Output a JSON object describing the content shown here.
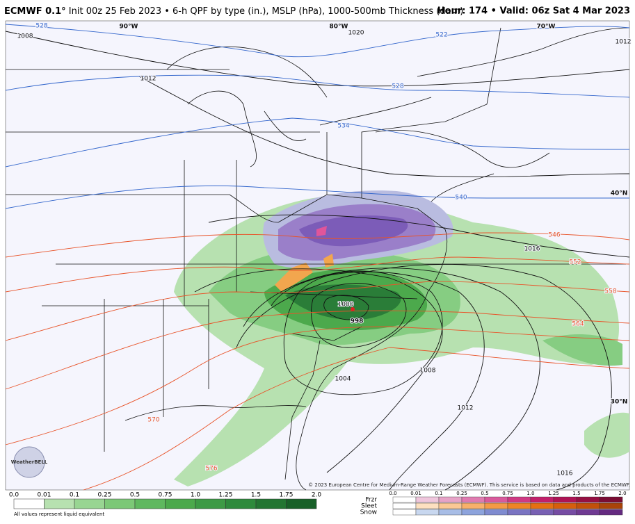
{
  "header": {
    "model": "ECMWF 0.1°",
    "title": "Init 00z 25 Feb 2023 • 6-h QPF by type (in.), MSLP (hPa), 1000-500mb Thickness (dam)",
    "valid": "Hour: 174 • Valid: 06z Sat 4 Mar 2023"
  },
  "map": {
    "longitudes": [
      "90°W",
      "80°W",
      "70°W"
    ],
    "latitudes": [
      "40°N",
      "30°N"
    ],
    "isobars": [
      "1008",
      "1012",
      "1020",
      "1012",
      "1016",
      "1000",
      "1004",
      "1008",
      "1012",
      "1016"
    ],
    "low_center": "998",
    "thickness": [
      "528",
      "522",
      "528",
      "534",
      "540",
      "546",
      "552",
      "558",
      "564",
      "570",
      "576"
    ]
  },
  "legend": {
    "rain": {
      "ticks": [
        "0.0",
        "0.01",
        "0.1",
        "0.25",
        "0.5",
        "0.75",
        "1.0",
        "1.25",
        "1.5",
        "1.75",
        "2.0"
      ],
      "note": "All values represent liquid equivalent"
    },
    "mixed": {
      "rows": [
        "Frzr",
        "Sleet",
        "Snow"
      ],
      "ticks": [
        "0.0",
        "0.01",
        "0.1",
        "0.25",
        "0.5",
        "0.75",
        "1.0",
        "1.25",
        "1.5",
        "1.75",
        "2.0"
      ]
    }
  },
  "credit": "© 2023 European Centre for Medium-Range Weather Forecasts (ECMWF). This service is based on data and products of the ECMWF.",
  "logo": "WeatherBELL"
}
